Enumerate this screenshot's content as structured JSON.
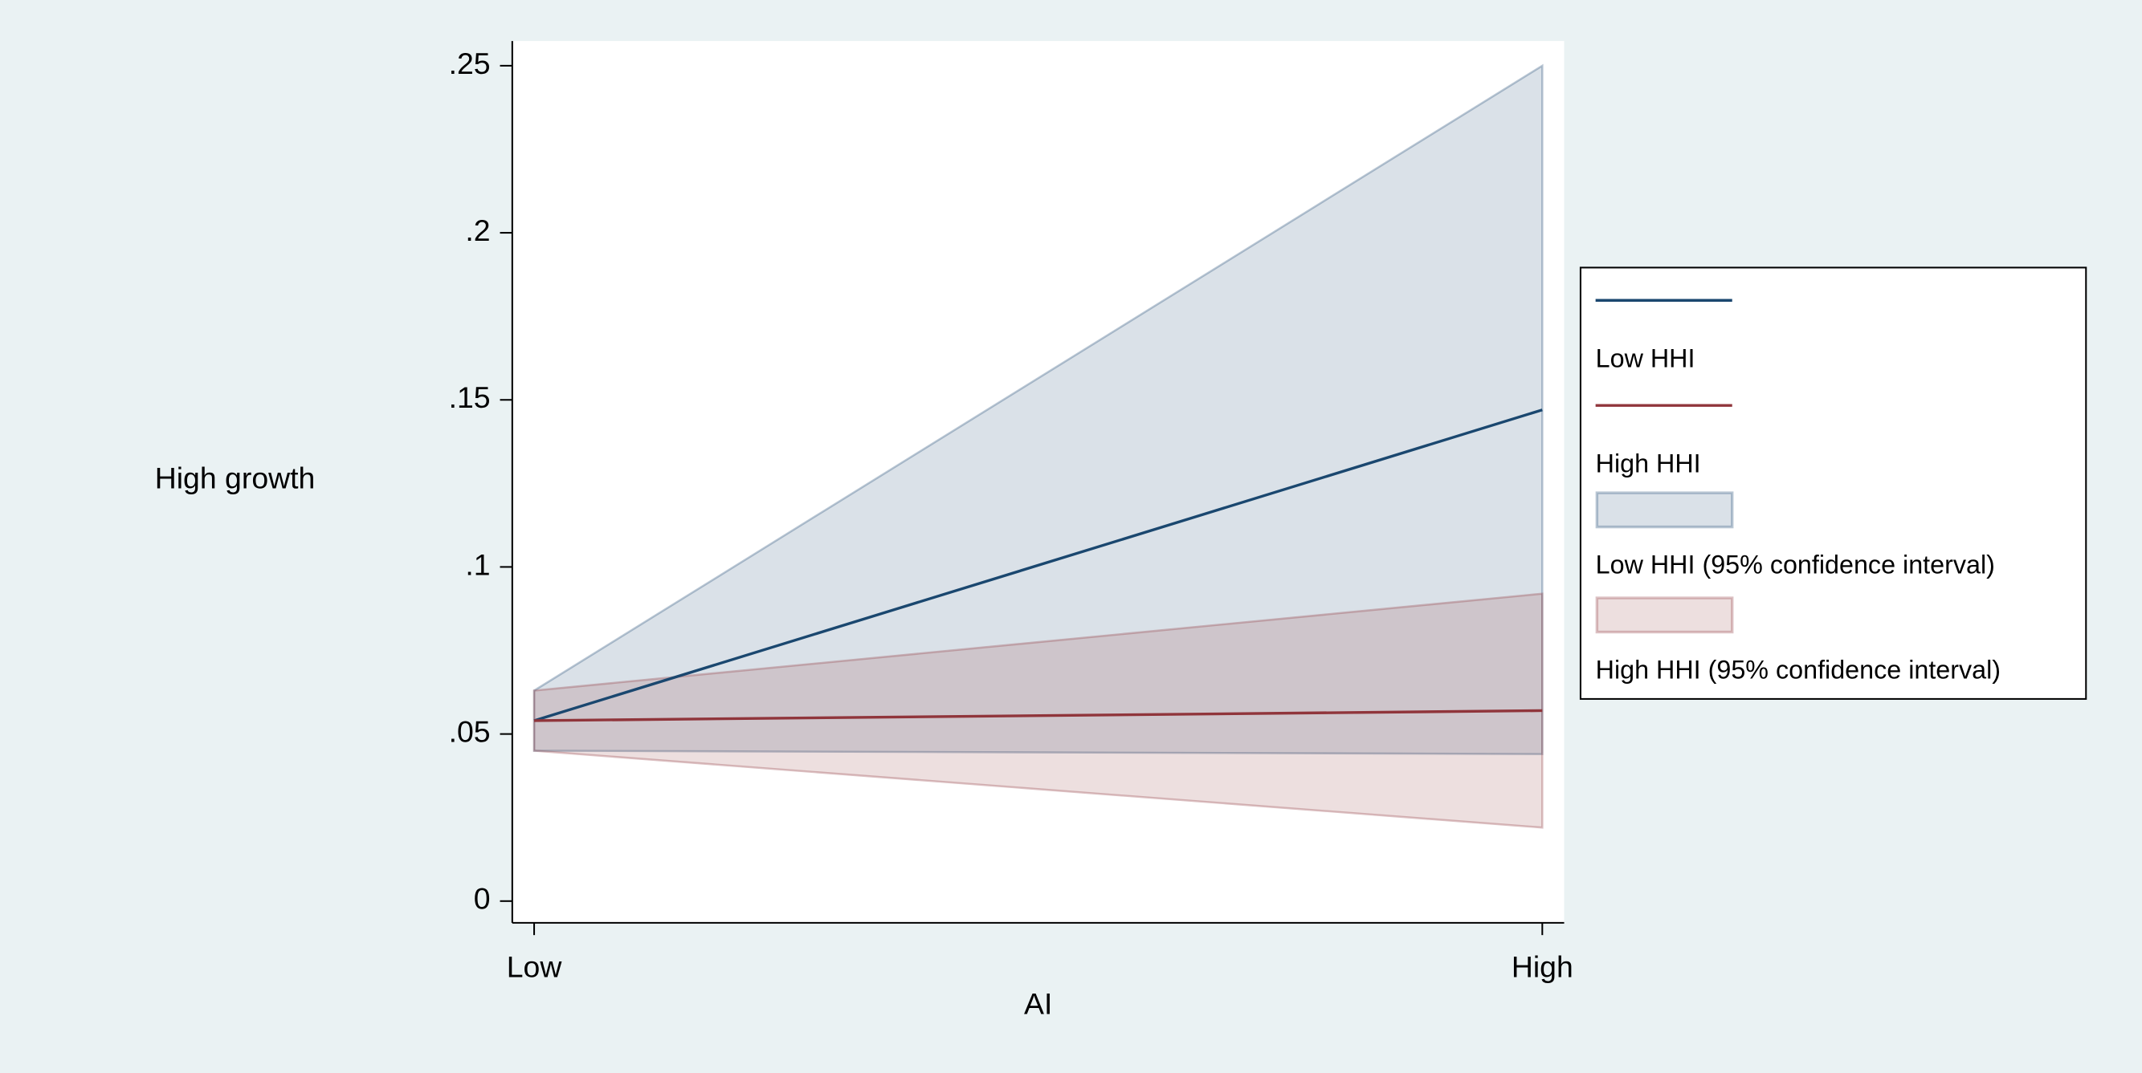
{
  "chart_data": {
    "type": "line",
    "x_label": "AI",
    "y_label": "High growth",
    "categories": [
      "Low",
      "High"
    ],
    "ylim": [
      -0.0065,
      0.2574
    ],
    "yticks": [
      0,
      {
        "value": 0.05,
        "label": ".05"
      },
      {
        "value": 0.1,
        "label": ".1"
      },
      {
        "value": 0.15,
        "label": ".15"
      },
      {
        "value": 0.2,
        "label": ".2"
      },
      {
        "value": 0.25,
        "label": ".25"
      }
    ],
    "series": [
      {
        "name": "Low HHI",
        "color": "#1a476f",
        "values": [
          0.054,
          0.147
        ]
      },
      {
        "name": "High HHI",
        "color": "#90353b",
        "values": [
          0.054,
          0.057
        ]
      }
    ],
    "bands": [
      {
        "name": "Low HHI (95% confidence interval)",
        "color": "#1a476f",
        "lower": [
          0.045,
          0.044
        ],
        "upper": [
          0.063,
          0.25
        ]
      },
      {
        "name": "High HHI (95% confidence interval)",
        "color": "#90353b",
        "lower": [
          0.045,
          0.022
        ],
        "upper": [
          0.063,
          0.092
        ]
      }
    ]
  }
}
